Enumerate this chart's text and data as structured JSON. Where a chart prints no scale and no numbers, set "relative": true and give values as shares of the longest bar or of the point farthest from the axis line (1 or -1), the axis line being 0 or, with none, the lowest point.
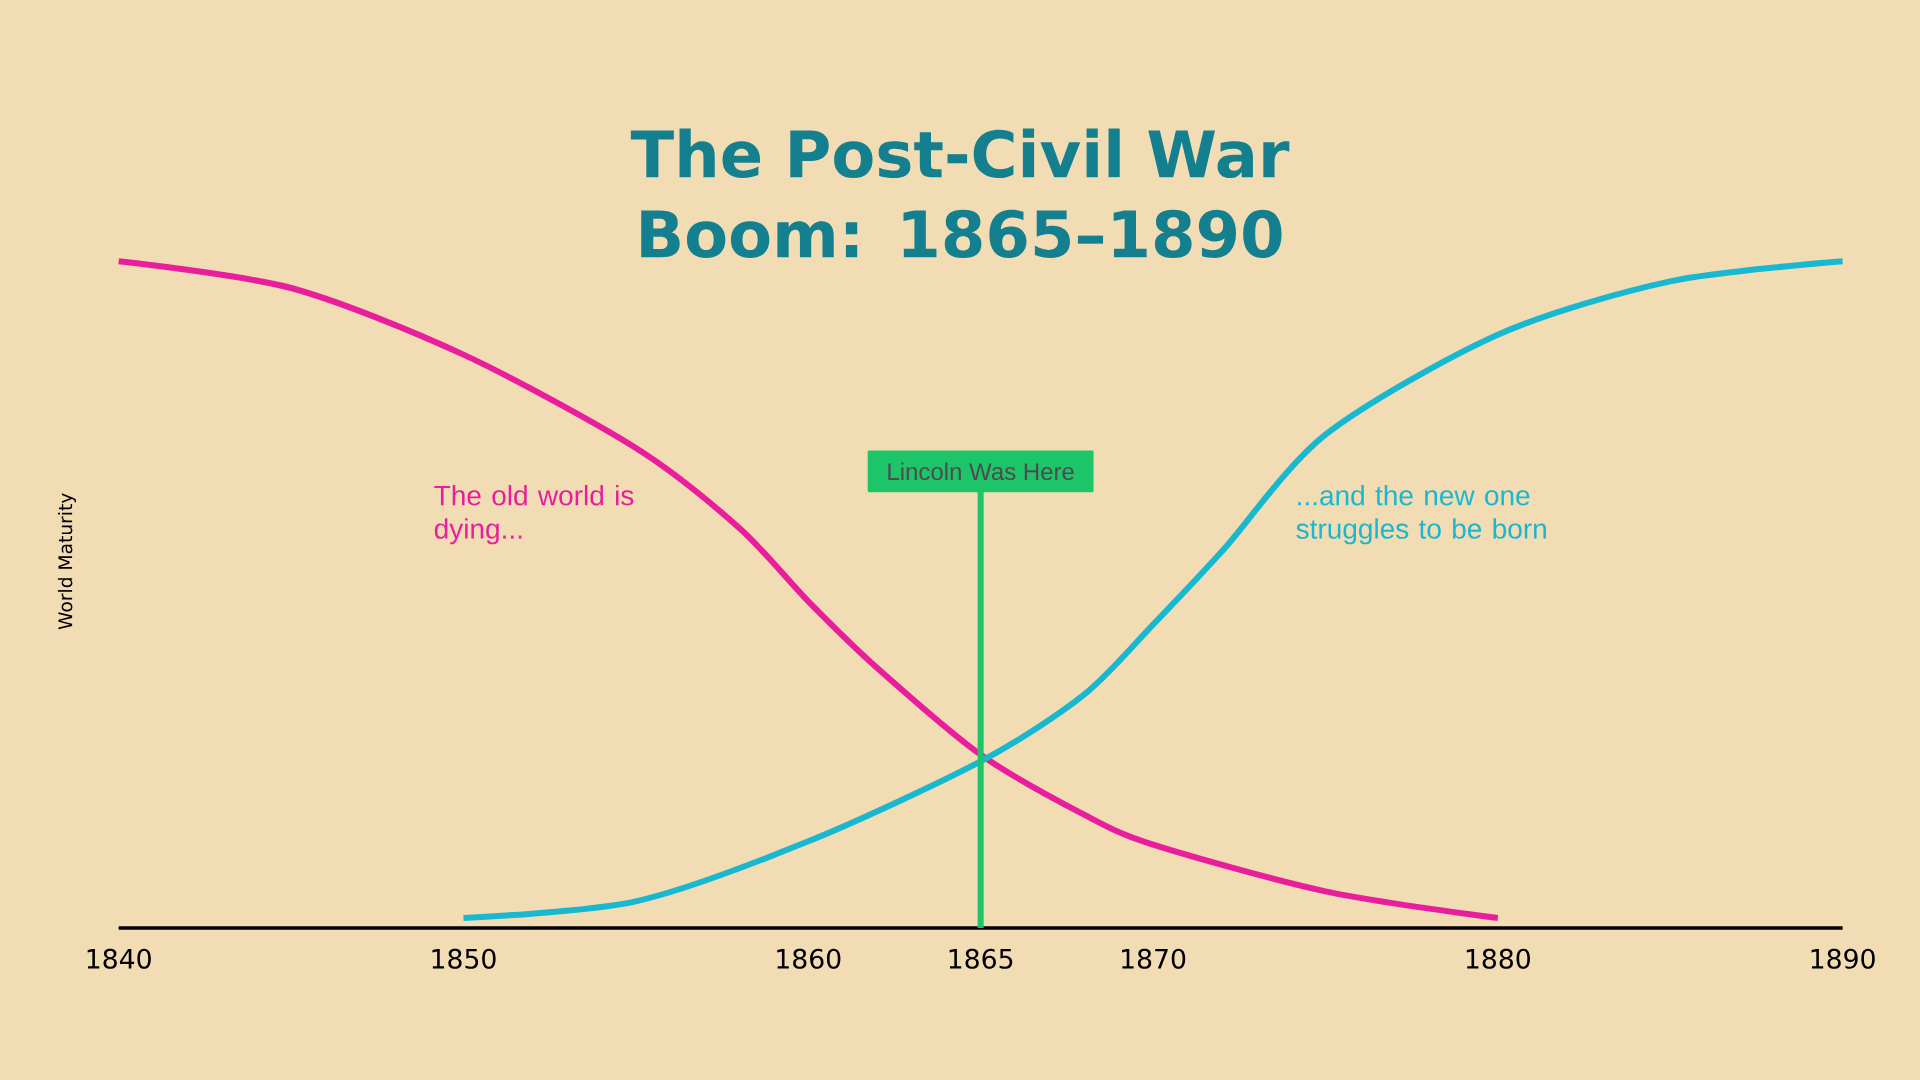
{
  "chart_data": {
    "type": "line",
    "title": "The Post-Civil War Boom: 1865–1890",
    "ylabel": "World Maturity",
    "relative": true,
    "xlim": [
      1840,
      1890
    ],
    "xticks": [
      1840,
      1850,
      1860,
      1865,
      1870,
      1880,
      1890
    ],
    "series": [
      {
        "color": "#e91e9c",
        "x": [
          1840,
          1845,
          1850,
          1855,
          1858,
          1860,
          1862,
          1865,
          1868,
          1870,
          1875,
          1880
        ],
        "values": [
          1,
          0.96,
          0.86,
          0.72,
          0.6,
          0.49,
          0.39,
          0.26,
          0.17,
          0.125,
          0.055,
          0.015
        ]
      },
      {
        "color": "#17b8d0",
        "x": [
          1850,
          1855,
          1860,
          1865,
          1868,
          1870,
          1872,
          1875,
          1880,
          1885,
          1890
        ],
        "values": [
          0.015,
          0.04,
          0.13,
          0.25,
          0.35,
          0.455,
          0.565,
          0.74,
          0.89,
          0.97,
          1
        ]
      }
    ],
    "ref_lines": [
      {
        "axis": "x",
        "value": 1865,
        "label": "Lincoln Was Here",
        "color": "#1ec46a"
      }
    ],
    "annotations": [
      "The old world is dying...",
      "...and the new one struggles to be born"
    ]
  }
}
